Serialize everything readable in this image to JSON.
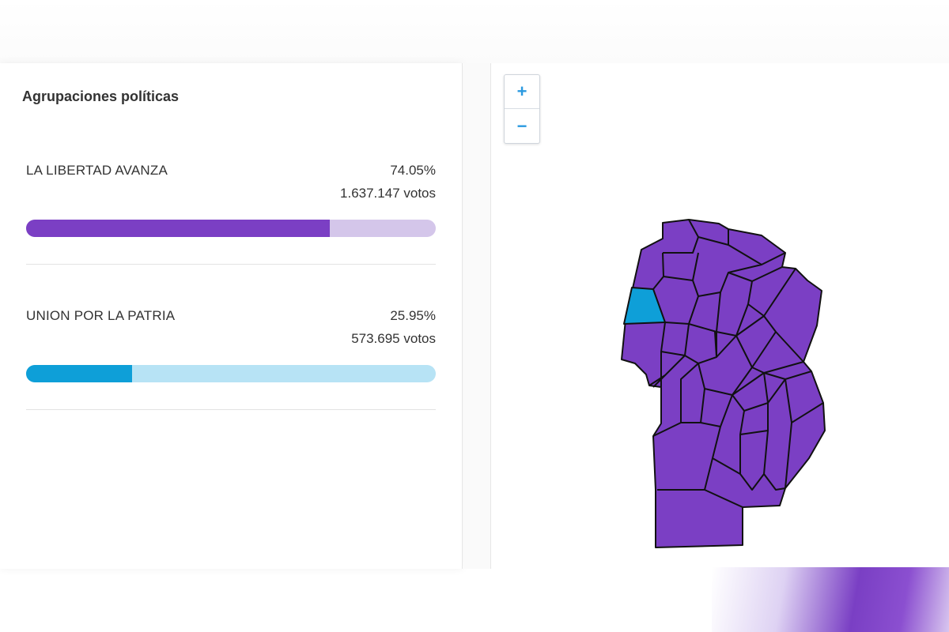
{
  "results": {
    "title": "Agrupaciones políticas",
    "parties": [
      {
        "name": "LA LIBERTAD AVANZA",
        "percent_label": "74.05%",
        "votes_label": "1.637.147 votos",
        "share": 0.7405,
        "color": "#7b3fc4",
        "track_color": "#d4c6ea"
      },
      {
        "name": "UNION POR LA PATRIA",
        "percent_label": "25.95%",
        "votes_label": "573.695 votos",
        "share": 0.2595,
        "color": "#0e9fd8",
        "track_color": "#b7e3f5"
      }
    ]
  },
  "map": {
    "zoom_in_label": "+",
    "zoom_out_label": "−",
    "region_fill": "#7b3fc4",
    "highlight_fill": "#0e9fd8",
    "border_color": "#111111"
  }
}
